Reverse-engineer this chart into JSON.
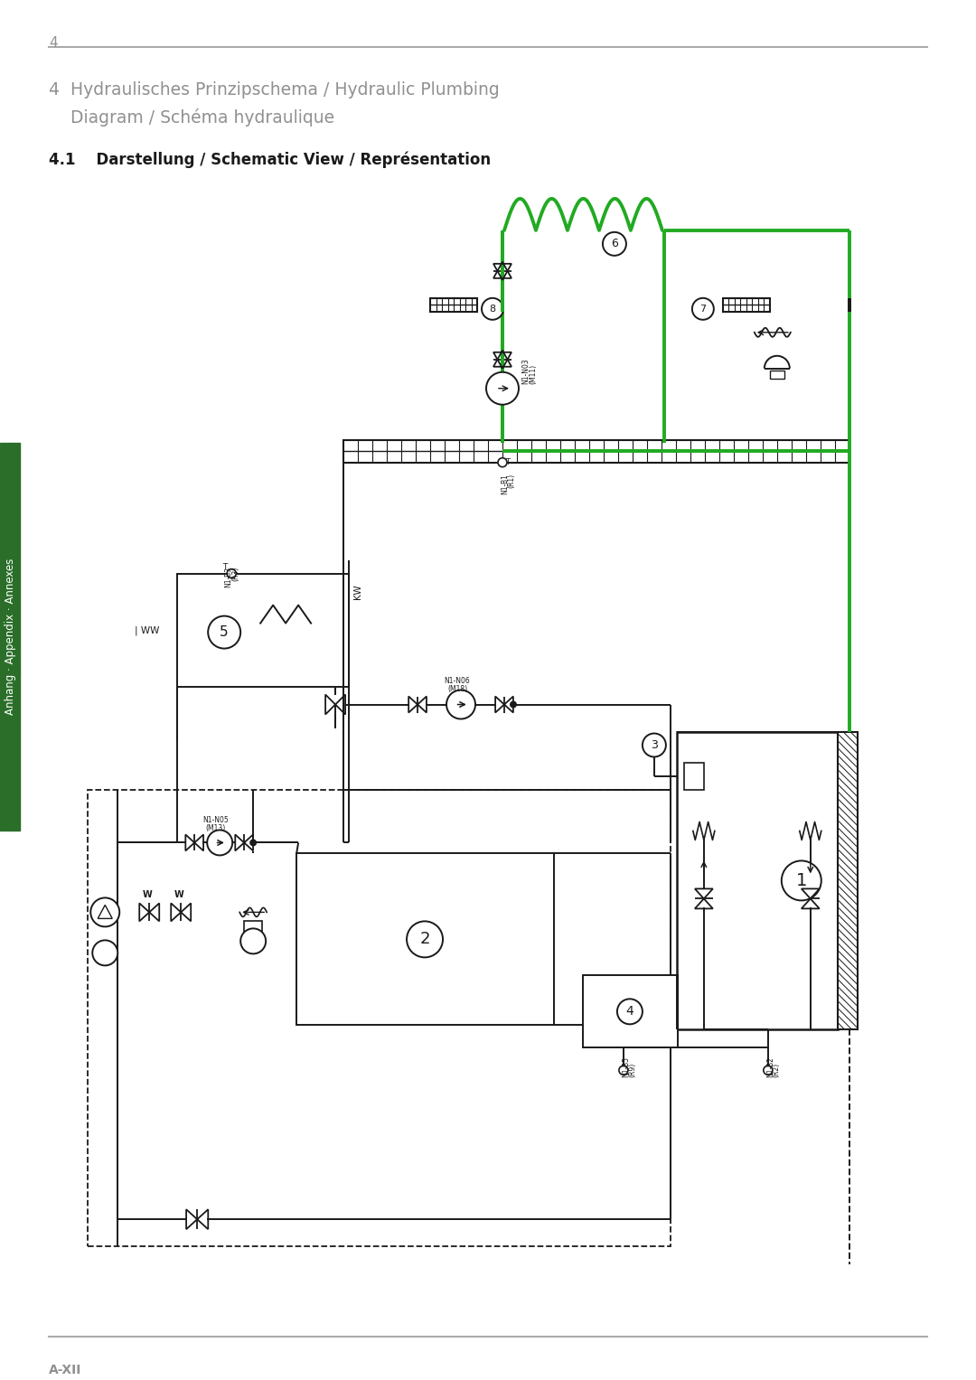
{
  "page_number": "4",
  "footer_text": "A-XII",
  "title_line1": "4  Hydraulisches Prinzipschema / Hydraulic Plumbing",
  "title_line2": "    Diagram / Schéma hydraulique",
  "section_title": "4.1    Darstellung / Schematic View / Représentation",
  "bg_color": "#ffffff",
  "text_color": "#909090",
  "black": "#1a1a1a",
  "green": "#22aa22",
  "line_gray": "#aaaaaa",
  "sidebar_color": "#2a6e2a",
  "sidebar_text": "Anhang · Appendix · Annexes"
}
